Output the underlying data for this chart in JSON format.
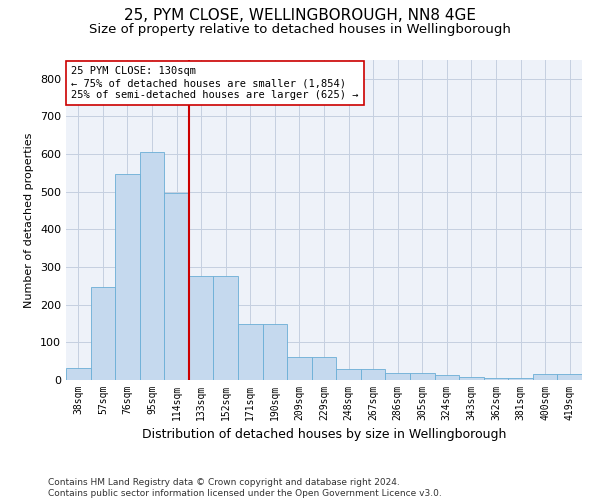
{
  "title1": "25, PYM CLOSE, WELLINGBOROUGH, NN8 4GE",
  "title2": "Size of property relative to detached houses in Wellingborough",
  "xlabel": "Distribution of detached houses by size in Wellingborough",
  "ylabel": "Number of detached properties",
  "categories": [
    "38sqm",
    "57sqm",
    "76sqm",
    "95sqm",
    "114sqm",
    "133sqm",
    "152sqm",
    "171sqm",
    "190sqm",
    "209sqm",
    "229sqm",
    "248sqm",
    "267sqm",
    "286sqm",
    "305sqm",
    "324sqm",
    "343sqm",
    "362sqm",
    "381sqm",
    "400sqm",
    "419sqm"
  ],
  "values": [
    32,
    248,
    548,
    605,
    497,
    275,
    275,
    148,
    148,
    62,
    62,
    30,
    30,
    18,
    18,
    13,
    7,
    5,
    5,
    15,
    15
  ],
  "bar_color": "#c5d9ee",
  "bar_edge_color": "#6aaed6",
  "vline_color": "#cc0000",
  "annotation_text": "25 PYM CLOSE: 130sqm\n← 75% of detached houses are smaller (1,854)\n25% of semi-detached houses are larger (625) →",
  "annotation_box_color": "white",
  "annotation_box_edge": "#cc0000",
  "footnote": "Contains HM Land Registry data © Crown copyright and database right 2024.\nContains public sector information licensed under the Open Government Licence v3.0.",
  "ylim": [
    0,
    850
  ],
  "yticks": [
    0,
    100,
    200,
    300,
    400,
    500,
    600,
    700,
    800
  ],
  "background_color": "#eef2f9",
  "title1_fontsize": 11,
  "title2_fontsize": 9.5,
  "xlabel_fontsize": 9,
  "ylabel_fontsize": 8,
  "footnote_fontsize": 6.5,
  "grid_color": "#c5cfe0"
}
